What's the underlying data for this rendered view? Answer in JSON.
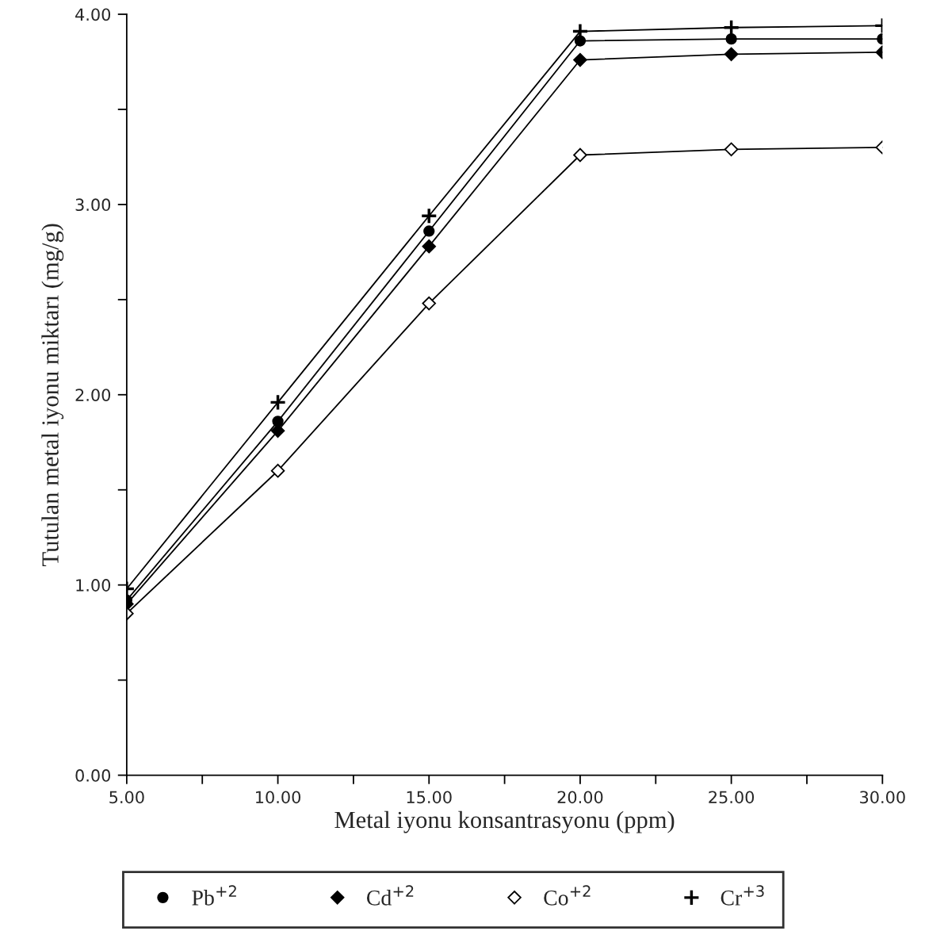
{
  "chart_data": {
    "type": "line",
    "xlabel": "Metal iyonu konsantrasyonu (ppm)",
    "ylabel": "Tutulan metal iyonu miktarı (mg/g)",
    "x": [
      5,
      10,
      15,
      20,
      25,
      30
    ],
    "series": [
      {
        "name": "Pb$^{+2}$",
        "color": "#000000",
        "marker": "circle",
        "values": [
          0.92,
          1.86,
          2.86,
          3.86,
          3.87,
          3.87
        ]
      },
      {
        "name": "Cd$^{+2}$",
        "color": "#000000",
        "marker": "diamond",
        "values": [
          0.9,
          1.81,
          2.78,
          3.76,
          3.79,
          3.8
        ]
      },
      {
        "name": "Co$^{+2}$",
        "color": "#000000",
        "marker": "diamond open",
        "values": [
          0.85,
          1.6,
          2.48,
          3.26,
          3.29,
          3.3
        ]
      },
      {
        "name": "Cr$^{+3}$",
        "color": "#000000",
        "marker": "cross",
        "values": [
          0.98,
          1.96,
          2.94,
          3.91,
          3.93,
          3.94
        ]
      }
    ],
    "xlim": [
      5,
      30
    ],
    "ylim": [
      0,
      4
    ],
    "xticks": [
      {
        "value": 5,
        "label": "5.00"
      },
      {
        "value": 7.5,
        "label": null
      },
      {
        "value": 10,
        "label": "10.00"
      },
      {
        "value": 12.5,
        "label": null
      },
      {
        "value": 15,
        "label": "15.00"
      },
      {
        "value": 17.5,
        "label": null
      },
      {
        "value": 20,
        "label": "20.00"
      },
      {
        "value": 22.5,
        "label": null
      },
      {
        "value": 25,
        "label": "25.00"
      },
      {
        "value": 27.5,
        "label": null
      },
      {
        "value": 30,
        "label": "30.00"
      }
    ],
    "yticks": [
      {
        "value": 0,
        "label": "0.00"
      },
      {
        "value": 0.5,
        "label": null
      },
      {
        "value": 1,
        "label": "1.00"
      },
      {
        "value": 1.5,
        "label": null
      },
      {
        "value": 2,
        "label": "2.00"
      },
      {
        "value": 2.5,
        "label": null
      },
      {
        "value": 3,
        "label": "3.00"
      },
      {
        "value": 3.5,
        "label": null
      },
      {
        "value": 4,
        "label": "4.00"
      }
    ],
    "grid": false,
    "legend": "bottom",
    "line_style": "solid"
  }
}
